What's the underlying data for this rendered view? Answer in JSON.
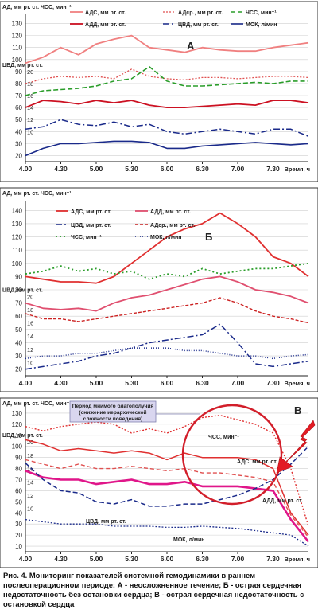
{
  "caption": "Рис. 4. Мониторинг показателей системной гемодинамики в раннем послеоперационном периоде: А - неосложненное течение; Б - острая сердечная недостаточность без остановки сердца; В - острая сердечная недостаточность с остановкой сердца",
  "chart_data": [
    {
      "type": "line",
      "title": "А",
      "ylabel": "АД, мм рт. ст. ЧСС, мин⁻¹",
      "cvp_label": "ЦВД, мм рт. ст.",
      "xlabel": "Время, ч",
      "x_ticks": [
        "4.00",
        "4.30",
        "5.00",
        "5.30",
        "6.00",
        "6.30",
        "7.00",
        "7.30"
      ],
      "y_ticks": [
        130,
        120,
        110,
        100,
        90,
        80,
        70,
        60,
        50,
        40,
        30,
        20
      ],
      "ylim": [
        15,
        135
      ],
      "x": [
        4.0,
        4.25,
        4.5,
        4.75,
        5.0,
        5.25,
        5.5,
        5.75,
        6.0,
        6.25,
        6.5,
        6.75,
        7.0,
        7.25,
        7.5,
        7.75,
        8.0
      ],
      "cvp_ticks": [
        20,
        18,
        16,
        14,
        12,
        10
      ],
      "cvp_tick_y": [
        90,
        80,
        70,
        60,
        50,
        40
      ],
      "series": [
        {
          "name": "АДС, мм рт. ст.",
          "color": "#f08080",
          "dash": "",
          "width": 1.8,
          "values": [
            97,
            102,
            110,
            104,
            113,
            117,
            120,
            110,
            108,
            106,
            110,
            108,
            107,
            107,
            110,
            112,
            114
          ]
        },
        {
          "name": "АДср., мм рт. ст.",
          "color": "#e05050",
          "dash": "2,2",
          "width": 1.3,
          "values": [
            80,
            84,
            86,
            85,
            86,
            84,
            92,
            86,
            84,
            83,
            85,
            85,
            84,
            85,
            86,
            86,
            85
          ]
        },
        {
          "name": "ЧСС, мин⁻¹",
          "color": "#2a9d2a",
          "dash": "6,3",
          "width": 1.6,
          "values": [
            70,
            74,
            75,
            76,
            78,
            82,
            84,
            94,
            82,
            78,
            78,
            79,
            80,
            81,
            80,
            82,
            82
          ]
        },
        {
          "name": "АДД, мм рт. ст.",
          "color": "#cc1122",
          "dash": "",
          "width": 1.8,
          "values": [
            60,
            66,
            65,
            63,
            66,
            64,
            66,
            62,
            60,
            60,
            61,
            62,
            63,
            62,
            66,
            66,
            64
          ]
        },
        {
          "name": "ЦВД, мм рт. ст.",
          "color": "#1a2a8a",
          "dash": "8,3,2,3",
          "width": 1.5,
          "values": [
            42,
            44,
            50,
            46,
            45,
            48,
            44,
            46,
            40,
            38,
            40,
            42,
            40,
            38,
            42,
            42,
            36
          ]
        },
        {
          "name": "МОК, л/мин",
          "color": "#1a2a8a",
          "dash": "",
          "width": 1.6,
          "values": [
            20,
            26,
            30,
            30,
            31,
            32,
            32,
            31,
            26,
            26,
            28,
            29,
            30,
            31,
            30,
            29,
            30
          ]
        }
      ]
    },
    {
      "type": "line",
      "title": "Б",
      "ylabel": "АД, мм рт. ст. ЧСС, мин⁻¹",
      "cvp_label": "ЦВД, мм рт. ст.",
      "xlabel": "Время, ч",
      "x_ticks": [
        "4.00",
        "4.30",
        "5.00",
        "5.30",
        "6.00",
        "6.30",
        "7.00",
        "7.30"
      ],
      "y_ticks": [
        140,
        130,
        120,
        110,
        100,
        90,
        80,
        70,
        60,
        50,
        40,
        30,
        20
      ],
      "ylim": [
        15,
        145
      ],
      "x": [
        4.0,
        4.25,
        4.5,
        4.75,
        5.0,
        5.25,
        5.5,
        5.75,
        6.0,
        6.25,
        6.5,
        6.75,
        7.0,
        7.25,
        7.5,
        7.75,
        8.0
      ],
      "cvp_ticks": [
        20,
        18,
        16,
        14,
        12,
        10
      ],
      "cvp_tick_y": [
        75,
        65,
        55,
        45,
        35,
        25
      ],
      "series": [
        {
          "name": "АДС, мм рт. ст.",
          "color": "#e03030",
          "dash": "",
          "width": 1.8,
          "values": [
            90,
            88,
            86,
            86,
            85,
            90,
            100,
            110,
            120,
            126,
            130,
            138,
            130,
            120,
            105,
            100,
            90
          ]
        },
        {
          "name": "АДД, мм рт. ст.",
          "color": "#e05070",
          "dash": "",
          "width": 1.8,
          "values": [
            70,
            66,
            65,
            66,
            64,
            70,
            74,
            76,
            80,
            84,
            88,
            90,
            86,
            80,
            78,
            75,
            70
          ]
        },
        {
          "name": "ЦВД, мм рт. ст.",
          "color": "#1a2a8a",
          "dash": "8,3,2,3",
          "width": 1.5,
          "values": [
            20,
            22,
            24,
            26,
            30,
            32,
            36,
            40,
            42,
            44,
            46,
            54,
            40,
            24,
            22,
            24,
            26
          ]
        },
        {
          "name": "АДср., мм рт. ст.",
          "color": "#cc2222",
          "dash": "4,2",
          "width": 1.4,
          "values": [
            62,
            58,
            58,
            56,
            58,
            60,
            62,
            64,
            66,
            68,
            70,
            74,
            70,
            64,
            60,
            58,
            55
          ]
        },
        {
          "name": "ЧСС, мин⁻¹",
          "color": "#2a9d2a",
          "dash": "2,3",
          "width": 1.8,
          "values": [
            92,
            94,
            98,
            94,
            96,
            92,
            94,
            88,
            92,
            90,
            96,
            92,
            94,
            96,
            96,
            98,
            100
          ]
        },
        {
          "name": "МОК, л/мин",
          "color": "#1a2a8a",
          "dash": "1,2",
          "width": 1.5,
          "values": [
            28,
            30,
            30,
            32,
            32,
            34,
            36,
            36,
            36,
            34,
            34,
            32,
            30,
            30,
            28,
            30,
            31
          ]
        }
      ]
    },
    {
      "type": "line",
      "title": "В",
      "ylabel": "АД, мм рт. ст. ЧСС, мин⁻¹",
      "cvp_label": "ЦВД, мм рт. ст.",
      "xlabel": "Время, ч",
      "x_ticks": [
        "4.00",
        "4.30",
        "5.00",
        "5.30",
        "6.00",
        "6.30",
        "7.00",
        "7.30"
      ],
      "y_ticks": [
        130,
        120,
        110,
        100,
        90,
        80,
        70,
        60,
        50,
        40,
        30,
        20,
        10
      ],
      "ylim": [
        5,
        135
      ],
      "x": [
        4.0,
        4.25,
        4.5,
        4.75,
        5.0,
        5.25,
        5.5,
        5.75,
        6.0,
        6.25,
        6.5,
        6.75,
        7.0,
        7.25,
        7.5,
        7.75,
        8.0
      ],
      "cvp_ticks": [
        20,
        18,
        16,
        14,
        12,
        10
      ],
      "cvp_tick_y": [
        104,
        92,
        80,
        68,
        56,
        44
      ],
      "annotations": {
        "period": "Период мнимого благополучия (снижение иерархической сложности поведения)",
        "hr_label": "ЧСС, мин⁻¹",
        "sbp_label": "АДС, мм рт. ст.",
        "dbp_label": "АДД, мм рт. ст.",
        "cvp_label": "ЦВД, мм рт. ст.",
        "co_label": "МОК, л/мин"
      },
      "series": [
        {
          "name": "ЧСС, мин⁻¹",
          "color": "#e03030",
          "dash": "2,2",
          "width": 1.4,
          "values": [
            118,
            114,
            118,
            120,
            122,
            120,
            112,
            116,
            112,
            118,
            126,
            128,
            124,
            120,
            112,
            80,
            28
          ]
        },
        {
          "name": "АДС, мм рт. ст.",
          "color": "#e03030",
          "dash": "",
          "width": 1.5,
          "values": [
            106,
            102,
            96,
            98,
            96,
            94,
            96,
            94,
            88,
            94,
            90,
            90,
            90,
            88,
            80,
            40,
            20
          ]
        },
        {
          "name": "АДср., мм рт. ст.",
          "color": "#e05050",
          "dash": "5,3",
          "width": 1.4,
          "values": [
            88,
            84,
            80,
            84,
            80,
            80,
            82,
            80,
            78,
            80,
            76,
            76,
            74,
            72,
            68,
            38,
            18
          ]
        },
        {
          "name": "АДД, мм рт. ст.",
          "color": "#e0168a",
          "dash": "",
          "width": 2.6,
          "values": [
            78,
            72,
            70,
            70,
            66,
            68,
            70,
            66,
            66,
            68,
            64,
            64,
            64,
            62,
            60,
            34,
            14
          ]
        },
        {
          "name": "ЦВД, мм рт. ст.",
          "color": "#1a2a8a",
          "dash": "6,3",
          "width": 1.5,
          "values": [
            85,
            70,
            60,
            58,
            50,
            48,
            52,
            46,
            46,
            48,
            48,
            52,
            56,
            62,
            70,
            84,
            100
          ]
        },
        {
          "name": "МОК, л/мин",
          "color": "#1a2a8a",
          "dash": "2,2",
          "width": 1.3,
          "values": [
            34,
            32,
            30,
            30,
            30,
            28,
            28,
            28,
            27,
            27,
            28,
            27,
            26,
            24,
            22,
            20,
            10
          ]
        }
      ]
    }
  ]
}
